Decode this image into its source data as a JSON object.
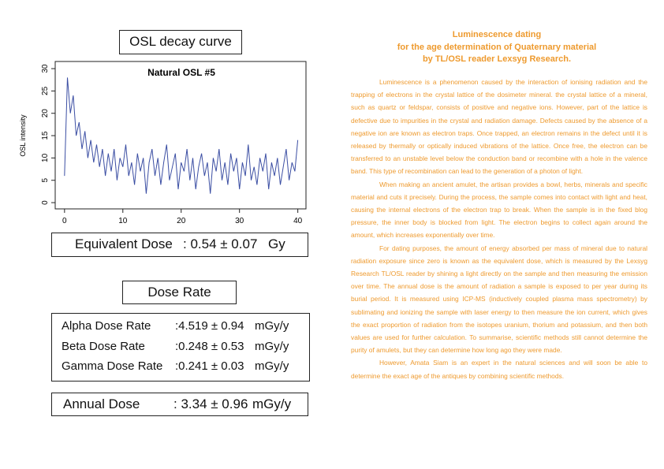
{
  "header": "OSL decay curve",
  "chart_data": {
    "type": "line",
    "title": "Natural OSL #5",
    "ylabel": "OSL intensity",
    "color": "#3b4ea3",
    "xlim": [
      -1.6,
      41.4
    ],
    "ylim": [
      -1.4,
      31.6
    ],
    "xticks": [
      0,
      10,
      20,
      30,
      40
    ],
    "yticks": [
      0,
      5,
      10,
      15,
      20,
      25,
      30
    ],
    "x": [
      0,
      0.5,
      1,
      1.5,
      2,
      2.5,
      3,
      3.5,
      4,
      4.5,
      5,
      5.5,
      6,
      6.5,
      7,
      7.5,
      8,
      8.5,
      9,
      9.5,
      10,
      10.5,
      11,
      11.5,
      12,
      12.5,
      13,
      13.5,
      14,
      14.5,
      15,
      15.5,
      16,
      16.5,
      17,
      17.5,
      18,
      18.5,
      19,
      19.5,
      20,
      20.5,
      21,
      21.5,
      22,
      22.5,
      23,
      23.5,
      24,
      24.5,
      25,
      25.5,
      26,
      26.5,
      27,
      27.5,
      28,
      28.5,
      29,
      29.5,
      30,
      30.5,
      31,
      31.5,
      32,
      32.5,
      33,
      33.5,
      34,
      34.5,
      35,
      35.5,
      36,
      36.5,
      37,
      37.5,
      38,
      38.5,
      39,
      39.5,
      40
    ],
    "values": [
      6,
      28,
      20,
      24,
      15,
      18,
      12,
      16,
      10,
      14,
      9,
      13,
      8,
      12,
      6,
      11,
      7,
      12,
      5,
      10,
      8,
      13,
      6,
      9,
      4,
      11,
      7,
      10,
      2,
      9,
      12,
      6,
      10,
      4,
      9,
      13,
      5,
      8,
      11,
      3,
      9,
      7,
      12,
      5,
      10,
      3,
      8,
      11,
      6,
      9,
      2,
      10,
      7,
      12,
      5,
      9,
      4,
      11,
      7,
      10,
      3,
      9,
      6,
      13,
      5,
      8,
      4,
      10,
      7,
      11,
      3,
      9,
      6,
      10,
      4,
      8,
      12,
      5,
      9,
      7,
      14
    ]
  },
  "equivalent_dose": {
    "label": "Equivalent Dose",
    "value": ": 0.54 ± 0.07",
    "unit": "Gy"
  },
  "dose_rate": {
    "title": "Dose Rate",
    "rows": [
      {
        "label": "Alpha Dose Rate",
        "value": ":4.519 ± 0.94",
        "unit": "mGy/y"
      },
      {
        "label": "Beta Dose Rate",
        "value": ":0.248 ± 0.53",
        "unit": "mGy/y"
      },
      {
        "label": "Gamma Dose Rate",
        "value": ":0.241 ± 0.03",
        "unit": "mGy/y"
      }
    ]
  },
  "annual_dose": {
    "label": "Annual Dose",
    "value": ": 3.34 ± 0.96",
    "unit": "mGy/y"
  },
  "article": {
    "title": [
      "Luminescence dating",
      "for the age determination of Quaternary material",
      "by TL/OSL reader Lexsyg Research."
    ],
    "paragraphs": [
      "Luminescence is a phenomenon caused by the interaction of ionising radiation and the trapping of electrons in the crystal lattice of the dosimeter mineral. the crystal lattice of a mineral, such as quartz or feldspar, consists of positive and negative ions. However, part of the lattice is defective due to impurities in the crystal and radiation damage. Defects caused by the absence of a negative ion are known as electron traps. Once trapped, an electron remains in the defect until it is released by thermally or optically induced vibrations of the lattice. Once free, the electron can be transferred to an unstable level below the conduction band or recombine with a hole in the valence band. This type of recombination can lead to the generation of a photon of light.",
      "When making an ancient amulet, the artisan provides a bowl, herbs, minerals and specific material and cuts it precisely. During the process, the sample comes into contact with light and heat, causing the internal electrons of the electron trap to break. When the sample is in the fixed blog pressure, the inner body is blocked from light. The electron begins to collect again around the amount, which increases exponentially over time.",
      "For dating purposes, the amount of energy absorbed per mass of mineral due to natural radiation exposure since zero is known as the equivalent dose, which is measured by the Lexsyg Research TL/OSL reader by shining a light directly on the sample and then measuring the emission over time. The annual dose is the amount of radiation a sample is exposed to per year during its burial period. It is measured using ICP-MS (inductively coupled plasma mass spectrometry) by sublimating and ionizing the sample with laser energy to then measure the ion current, which gives the exact proportion of radiation from the isotopes uranium, thorium and potassium, and then both values are used for further calculation. To summarise, scientific methods still cannot determine the purity of amulets, but they can determine how long ago they were made.",
      "However, Amata Siam is an expert in the natural sciences and will soon be able to determine the exact age of the antiques by combining scientific methods."
    ]
  }
}
